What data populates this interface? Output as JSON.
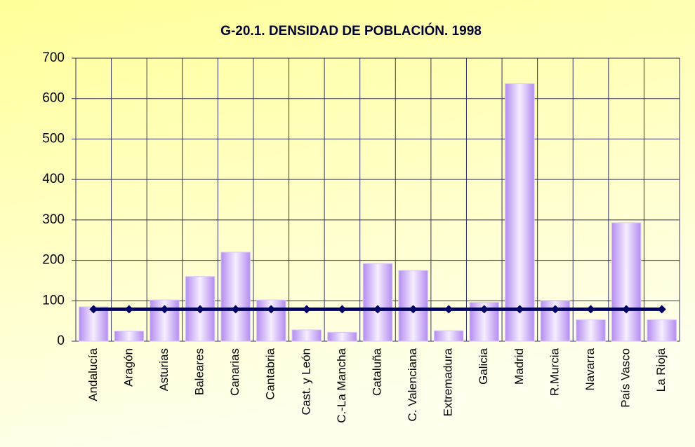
{
  "chart_data": {
    "type": "bar",
    "title": "G-20.1. DENSIDAD DE POBLACIÓN. 1998",
    "categories": [
      "Andalucía",
      "Aragón",
      "Asturias",
      "Baleares",
      "Canarias",
      "Cantabria",
      "Cast. y León",
      "C.-La Mancha",
      "Cataluña",
      "C. Valenciana",
      "Extremadura",
      "Galicia",
      "Madrid",
      "R.Murcia",
      "Navarra",
      "País Vasco",
      "La Rioja"
    ],
    "series": [
      {
        "type": "bar",
        "color": "#b48cf0",
        "values": [
          85,
          25,
          102,
          160,
          220,
          102,
          28,
          22,
          192,
          175,
          26,
          96,
          637,
          100,
          53,
          293,
          53
        ]
      },
      {
        "type": "line",
        "color": "#000066",
        "values": [
          79,
          79,
          79,
          79,
          79,
          79,
          79,
          79,
          79,
          79,
          79,
          79,
          79,
          79,
          79,
          79,
          79
        ]
      }
    ],
    "ylim": [
      0,
      700
    ],
    "yticks": [
      0,
      100,
      200,
      300,
      400,
      500,
      600,
      700
    ],
    "grid": true
  }
}
